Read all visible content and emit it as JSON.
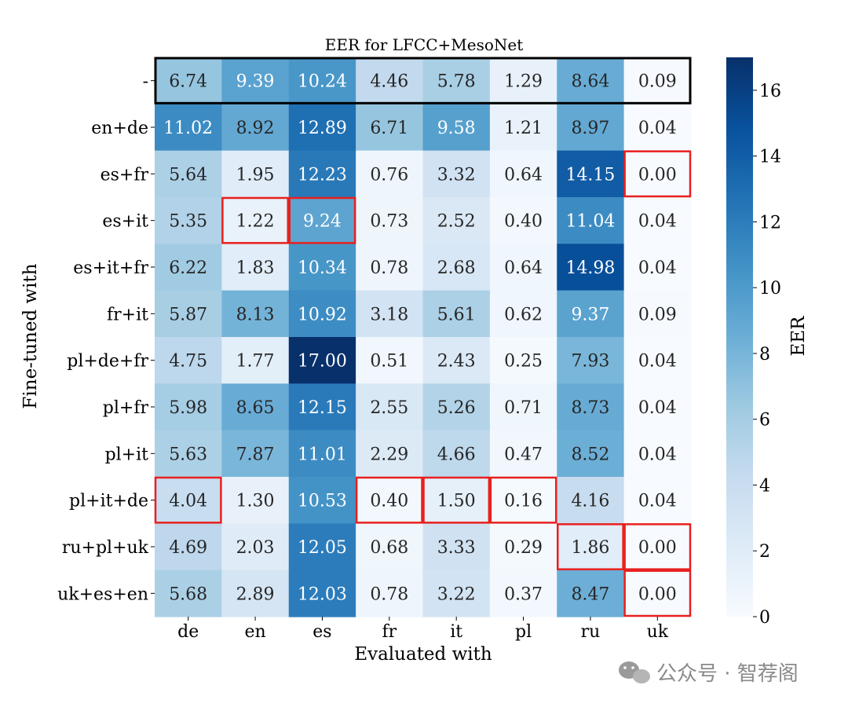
{
  "chart_data": {
    "type": "heatmap",
    "title": "EER for LFCC+MesoNet",
    "xlabel": "Evaluated with",
    "ylabel": "Fine-tuned with",
    "x_categories": [
      "de",
      "en",
      "es",
      "fr",
      "it",
      "pl",
      "ru",
      "uk"
    ],
    "y_categories": [
      "-",
      "en+de",
      "es+fr",
      "es+it",
      "es+it+fr",
      "fr+it",
      "pl+de+fr",
      "pl+fr",
      "pl+it",
      "pl+it+de",
      "ru+pl+uk",
      "uk+es+en"
    ],
    "values": [
      [
        "6.74",
        "9.39",
        "10.24",
        "4.46",
        "5.78",
        "1.29",
        "8.64",
        "0.09"
      ],
      [
        "11.02",
        "8.92",
        "12.89",
        "6.71",
        "9.58",
        "1.21",
        "8.97",
        "0.04"
      ],
      [
        "5.64",
        "1.95",
        "12.23",
        "0.76",
        "3.32",
        "0.64",
        "14.15",
        "0.00"
      ],
      [
        "5.35",
        "1.22",
        "9.24",
        "0.73",
        "2.52",
        "0.40",
        "11.04",
        "0.04"
      ],
      [
        "6.22",
        "1.83",
        "10.34",
        "0.78",
        "2.68",
        "0.64",
        "14.98",
        "0.04"
      ],
      [
        "5.87",
        "8.13",
        "10.92",
        "3.18",
        "5.61",
        "0.62",
        "9.37",
        "0.09"
      ],
      [
        "4.75",
        "1.77",
        "17.00",
        "0.51",
        "2.43",
        "0.25",
        "7.93",
        "0.04"
      ],
      [
        "5.98",
        "8.65",
        "12.15",
        "2.55",
        "5.26",
        "0.71",
        "8.73",
        "0.04"
      ],
      [
        "5.63",
        "7.87",
        "11.01",
        "2.29",
        "4.66",
        "0.47",
        "8.52",
        "0.04"
      ],
      [
        "4.04",
        "1.30",
        "10.53",
        "0.40",
        "1.50",
        "0.16",
        "4.16",
        "0.04"
      ],
      [
        "4.69",
        "2.03",
        "12.05",
        "0.68",
        "3.33",
        "0.29",
        "1.86",
        "0.00"
      ],
      [
        "5.68",
        "2.89",
        "12.03",
        "0.78",
        "3.22",
        "0.37",
        "8.47",
        "0.00"
      ]
    ],
    "colorbar": {
      "label": "EER",
      "range": [
        0,
        17
      ],
      "ticks": [
        "0",
        "2",
        "4",
        "6",
        "8",
        "10",
        "12",
        "14",
        "16"
      ],
      "colormap": "Blues"
    },
    "highlights": {
      "baseline_row": 0,
      "baseline_color": "#000000",
      "color": "#e8201e",
      "cells": [
        [
          2,
          7
        ],
        [
          3,
          1
        ],
        [
          3,
          2
        ],
        [
          9,
          0
        ],
        [
          9,
          3
        ],
        [
          9,
          4
        ],
        [
          9,
          5
        ],
        [
          10,
          6
        ],
        [
          10,
          7
        ],
        [
          11,
          7
        ]
      ]
    }
  },
  "watermark": {
    "icon": "wechat-icon",
    "text": "公众号 · 智荐阁"
  }
}
